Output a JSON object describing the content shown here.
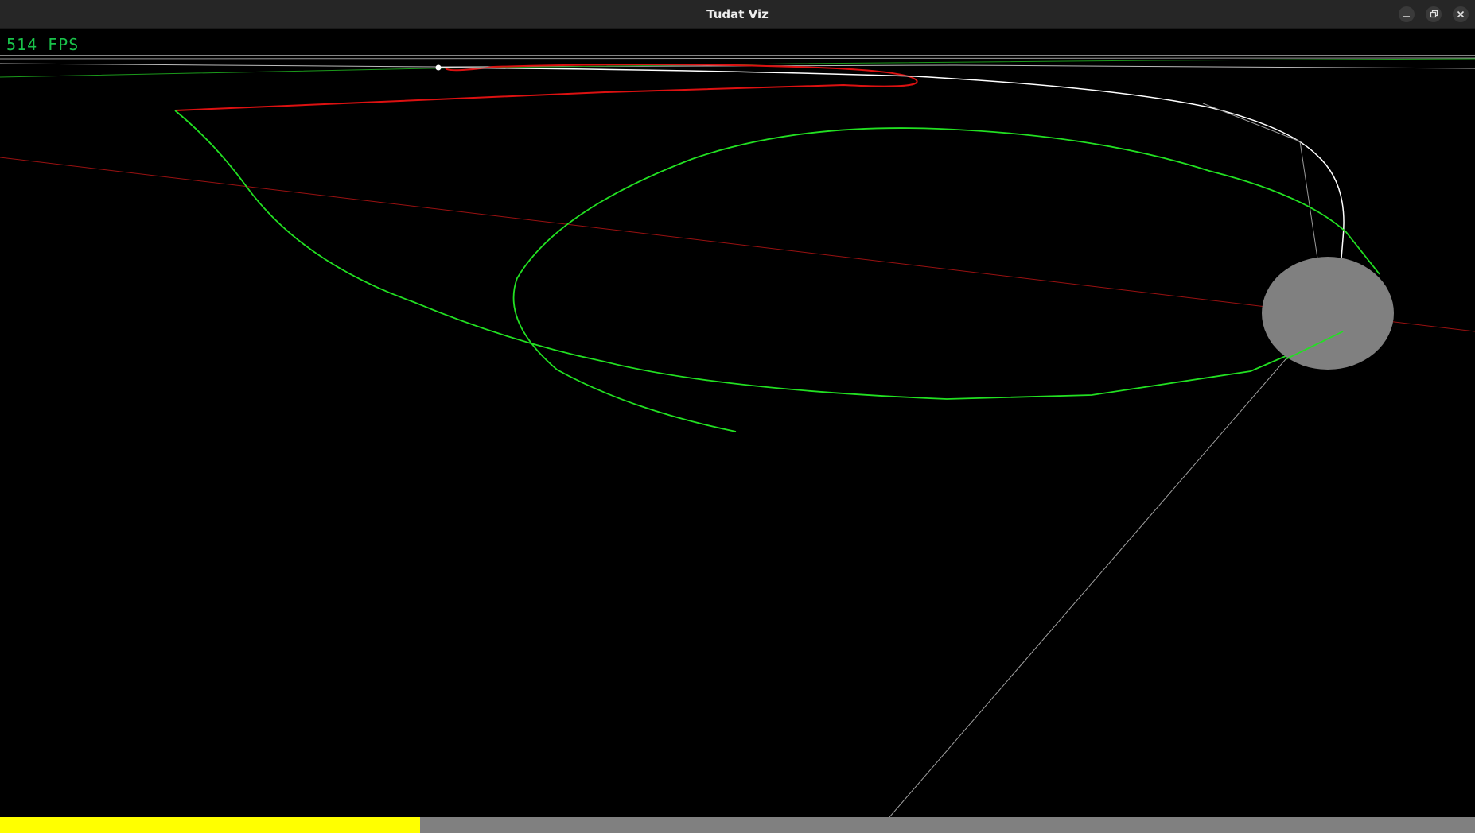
{
  "window": {
    "title": "Tudat Viz",
    "buttons": {
      "minimize_icon": "minimize-icon",
      "maximize_icon": "restore-icon",
      "close_icon": "close-icon"
    }
  },
  "overlay": {
    "fps_text": "514 FPS"
  },
  "timeline": {
    "progress_fraction": 0.285
  },
  "colors": {
    "background": "#000000",
    "titlebar": "#262626",
    "fps_text": "#19c24a",
    "trajectory_green": "#22e022",
    "trajectory_red": "#cc1111",
    "trajectory_white": "#ffffff",
    "central_body": "#808080",
    "progress_fill": "#ffff00",
    "progress_track": "#808080"
  }
}
